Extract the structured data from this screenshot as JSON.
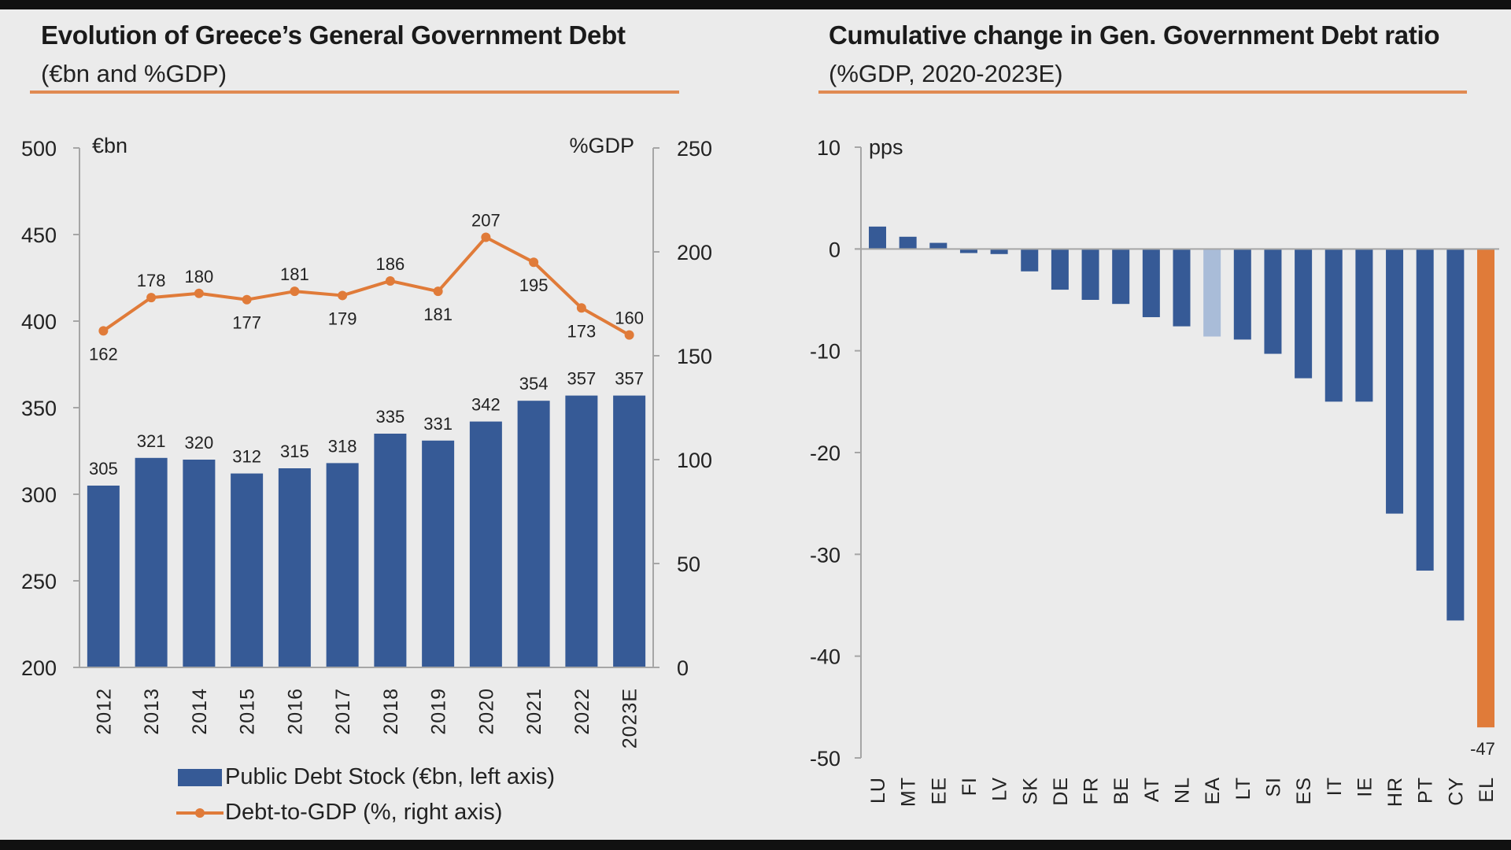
{
  "left": {
    "title": "Evolution of Greece’s General Government Debt",
    "subtitle": "(€bn and %GDP)",
    "unit_left": "€bn",
    "unit_right": "%GDP",
    "legend": [
      {
        "label": "Public Debt Stock (€bn, left axis)",
        "color": "#365a96"
      },
      {
        "label": "Debt-to-GDP (%, right axis)",
        "color": "#e07b39"
      }
    ]
  },
  "right": {
    "title": "Cumulative change in Gen. Government Debt ratio",
    "subtitle": "(%GDP, 2020-2023E)",
    "unit": "pps"
  },
  "chart_data": [
    {
      "type": "bar",
      "title": "Evolution of Greece’s General Government Debt (€bn and %GDP)",
      "categories": [
        "2012",
        "2013",
        "2014",
        "2015",
        "2016",
        "2017",
        "2018",
        "2019",
        "2020",
        "2021",
        "2022",
        "2023E"
      ],
      "series": [
        {
          "name": "Public Debt Stock (€bn, left axis)",
          "type": "bar",
          "axis": "left",
          "color": "#365a96",
          "values": [
            305,
            321,
            320,
            312,
            315,
            318,
            335,
            331,
            342,
            354,
            357,
            357
          ]
        },
        {
          "name": "Debt-to-GDP (%, right axis)",
          "type": "line",
          "axis": "right",
          "color": "#e07b39",
          "values": [
            162,
            178,
            180,
            177,
            181,
            179,
            186,
            181,
            207,
            195,
            173,
            160
          ],
          "label_position": [
            "below",
            "above",
            "above",
            "below",
            "above",
            "below",
            "above",
            "below",
            "above",
            "below",
            "below",
            "above"
          ]
        }
      ],
      "ylabel_left": "€bn",
      "ylabel_right": "%GDP",
      "ylim_left": [
        200,
        500
      ],
      "yticks_left": [
        200,
        250,
        300,
        350,
        400,
        450,
        500
      ],
      "ylim_right": [
        0,
        250
      ],
      "yticks_right": [
        0,
        50,
        100,
        150,
        200,
        250
      ],
      "grid": false,
      "legend_position": "bottom"
    },
    {
      "type": "bar",
      "title": "Cumulative change in Gen. Government Debt ratio (%GDP, 2020-2023E)",
      "categories": [
        "LU",
        "MT",
        "EE",
        "FI",
        "LV",
        "SK",
        "DE",
        "FR",
        "BE",
        "AT",
        "NL",
        "EA",
        "LT",
        "SI",
        "ES",
        "IT",
        "IE",
        "HR",
        "PT",
        "CY",
        "EL"
      ],
      "values": [
        2.2,
        1.2,
        0.6,
        -0.4,
        -0.5,
        -2.2,
        -4.0,
        -5.0,
        -5.4,
        -6.7,
        -7.6,
        -8.6,
        -8.9,
        -10.3,
        -12.7,
        -15.0,
        -15.0,
        -26.0,
        -31.6,
        -36.5,
        -47
      ],
      "colors": {
        "default": "#365a96",
        "EA": "#a9bcd8",
        "EL": "#e07b39"
      },
      "data_labels": {
        "EL": "-47"
      },
      "ylabel": "pps",
      "ylim": [
        -50,
        10
      ],
      "yticks": [
        -50,
        -40,
        -30,
        -20,
        -10,
        0,
        10
      ],
      "grid": false
    }
  ]
}
